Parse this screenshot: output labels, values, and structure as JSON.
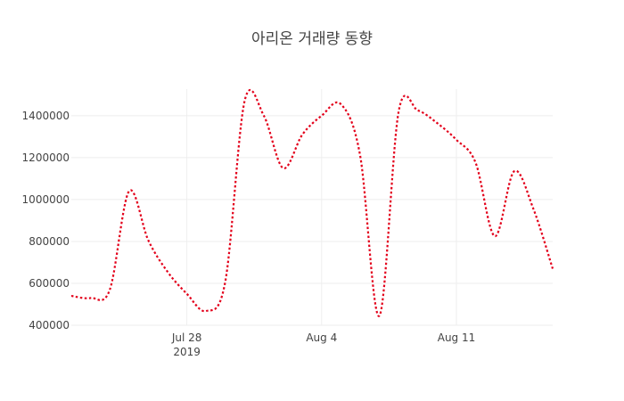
{
  "chart_data": {
    "type": "line",
    "title": "아리온 거래량 동향",
    "xlabel": "",
    "ylabel": "",
    "x": [
      "2019-07-22",
      "2019-07-23",
      "2019-07-24",
      "2019-07-25",
      "2019-07-26",
      "2019-07-27",
      "2019-07-28",
      "2019-07-29",
      "2019-07-30",
      "2019-07-31",
      "2019-08-01",
      "2019-08-02",
      "2019-08-03",
      "2019-08-04",
      "2019-08-05",
      "2019-08-06",
      "2019-08-07",
      "2019-08-08",
      "2019-08-09",
      "2019-08-10",
      "2019-08-11",
      "2019-08-12",
      "2019-08-13",
      "2019-08-14",
      "2019-08-15",
      "2019-08-16"
    ],
    "series": [
      {
        "name": "거래량",
        "color": "#e3001b",
        "line_style": "dot",
        "values": [
          540000,
          530000,
          570000,
          1040000,
          805000,
          655000,
          550000,
          468000,
          610000,
          1470000,
          1400000,
          1150000,
          1310000,
          1400000,
          1455000,
          1210000,
          445000,
          1420000,
          1425000,
          1365000,
          1285000,
          1175000,
          825000,
          1135000,
          955000,
          670000
        ]
      }
    ],
    "xticks": [
      {
        "date": "2019-07-28",
        "label": "Jul 28",
        "sublabel": "2019"
      },
      {
        "date": "2019-08-04",
        "label": "Aug 4"
      },
      {
        "date": "2019-08-11",
        "label": "Aug 11"
      }
    ],
    "yticks": [
      400000,
      600000,
      800000,
      1000000,
      1200000,
      1400000
    ],
    "ytick_labels": [
      "400000",
      "600000",
      "800000",
      "1000000",
      "1200000",
      "1400000"
    ],
    "xlim": [
      "2019-07-22",
      "2019-08-16"
    ],
    "ylim": [
      400000,
      1527000
    ],
    "grid": true,
    "legend": "none"
  }
}
